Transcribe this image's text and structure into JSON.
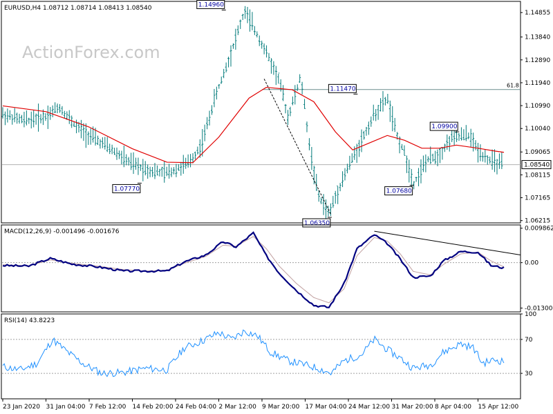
{
  "header": {
    "title": "EURUSD,H4  1.08712 1.08714 1.08413 1.08540"
  },
  "watermark": "ActionForex.com",
  "chart_data": [
    {
      "type": "candlestick",
      "title": "EURUSD,H4  1.08712 1.08714 1.08413 1.08540",
      "y_ticks": [
        "1.14855",
        "1.13840",
        "1.12890",
        "1.11940",
        "1.10990",
        "1.10040",
        "1.09065",
        "1.08115",
        "1.07165",
        "1.06215"
      ],
      "y_tick_values": [
        1.14855,
        1.1384,
        1.1289,
        1.1194,
        1.1099,
        1.1004,
        1.09065,
        1.08115,
        1.07165,
        1.06215
      ],
      "ylim": [
        1.0612,
        1.1532
      ],
      "current_price": {
        "label": "1.08540",
        "value": 1.0854
      },
      "fib_level": {
        "label": "61.8",
        "value": 1.1166
      },
      "annotations": [
        {
          "label": "1.14960",
          "x": 5.1,
          "value": 1.1496
        },
        {
          "label": "1.11470",
          "x": 8.15,
          "value": 1.1147
        },
        {
          "label": "1.07770",
          "x": 3.15,
          "value": 1.0777
        },
        {
          "label": "1.06350",
          "x": 7.55,
          "value": 1.0635
        },
        {
          "label": "1.07680",
          "x": 9.45,
          "value": 1.0768
        },
        {
          "label": "1.09900",
          "x": 10.5,
          "value": 1.099
        }
      ],
      "price_path": [
        [
          0,
          1.1062
        ],
        [
          0.5,
          1.1036
        ],
        [
          1,
          1.1054
        ],
        [
          1.3,
          1.1095
        ],
        [
          1.7,
          1.1012
        ],
        [
          2,
          1.0975
        ],
        [
          2.5,
          1.0918
        ],
        [
          3,
          1.0855
        ],
        [
          3.5,
          1.0825
        ],
        [
          3.8,
          1.0818
        ],
        [
          4.3,
          1.0858
        ],
        [
          4.6,
          1.0935
        ],
        [
          4.9,
          1.1125
        ],
        [
          5.2,
          1.1275
        ],
        [
          5.6,
          1.1492
        ],
        [
          6,
          1.1356
        ],
        [
          6.4,
          1.1205
        ],
        [
          6.6,
          1.1052
        ],
        [
          6.9,
          1.1218
        ],
        [
          7.1,
          1.0932
        ],
        [
          7.3,
          1.0725
        ],
        [
          7.55,
          1.065
        ],
        [
          7.8,
          1.0765
        ],
        [
          8,
          1.0845
        ],
        [
          8.3,
          1.0952
        ],
        [
          8.6,
          1.1062
        ],
        [
          8.9,
          1.113
        ],
        [
          9.1,
          1.0985
        ],
        [
          9.3,
          1.0902
        ],
        [
          9.5,
          1.0772
        ],
        [
          9.8,
          1.0868
        ],
        [
          10.1,
          1.0895
        ],
        [
          10.4,
          1.0968
        ],
        [
          10.8,
          1.0975
        ],
        [
          11.0,
          1.0912
        ],
        [
          11.3,
          1.0868
        ],
        [
          11.6,
          1.0852
        ]
      ],
      "ma_path": [
        [
          0,
          1.1098
        ],
        [
          1,
          1.1074
        ],
        [
          2,
          1.101
        ],
        [
          3,
          1.092
        ],
        [
          3.8,
          1.0864
        ],
        [
          4.4,
          1.0862
        ],
        [
          5,
          1.0968
        ],
        [
          5.7,
          1.113
        ],
        [
          6.1,
          1.1175
        ],
        [
          6.7,
          1.1165
        ],
        [
          7.2,
          1.1115
        ],
        [
          7.7,
          1.099
        ],
        [
          8.1,
          1.0915
        ],
        [
          8.5,
          1.0945
        ],
        [
          8.9,
          1.0975
        ],
        [
          9.3,
          1.0955
        ],
        [
          9.7,
          1.0922
        ],
        [
          10.1,
          1.0922
        ],
        [
          10.5,
          1.0935
        ],
        [
          11.0,
          1.0922
        ],
        [
          11.4,
          1.091
        ],
        [
          11.6,
          1.0905
        ]
      ]
    },
    {
      "type": "line",
      "title": "MACD(12,26,9) -0.001496 -0.001676",
      "y_ticks": [
        "0.009862",
        "0.00",
        "-0.013002"
      ],
      "y_tick_values": [
        0.009862,
        0.0,
        -0.013002
      ],
      "ylim": [
        -0.0141,
        0.0108
      ],
      "series": [
        {
          "name": "MACD",
          "values": [
            [
              0,
              -0.0008
            ],
            [
              0.6,
              -0.001
            ],
            [
              1.1,
              0.0012
            ],
            [
              1.6,
              -0.0004
            ],
            [
              2.2,
              -0.0012
            ],
            [
              2.8,
              -0.0024
            ],
            [
              3.3,
              -0.0024
            ],
            [
              3.8,
              -0.0024
            ],
            [
              4.2,
              0.0002
            ],
            [
              4.7,
              0.0022
            ],
            [
              5.1,
              0.006
            ],
            [
              5.4,
              0.0045
            ],
            [
              5.8,
              0.0085
            ],
            [
              6.1,
              0.002
            ],
            [
              6.4,
              -0.003
            ],
            [
              6.8,
              -0.008
            ],
            [
              7.2,
              -0.0122
            ],
            [
              7.55,
              -0.0128
            ],
            [
              7.9,
              -0.006
            ],
            [
              8.2,
              0.004
            ],
            [
              8.6,
              0.008
            ],
            [
              8.9,
              0.0055
            ],
            [
              9.2,
              0.001
            ],
            [
              9.5,
              -0.0042
            ],
            [
              9.9,
              -0.0038
            ],
            [
              10.2,
              0.0005
            ],
            [
              10.6,
              0.0032
            ],
            [
              11.0,
              0.003
            ],
            [
              11.3,
              -0.0008
            ],
            [
              11.6,
              -0.0015
            ]
          ]
        },
        {
          "name": "Signal",
          "values": [
            [
              0,
              -0.0006
            ],
            [
              0.6,
              -0.0009
            ],
            [
              1.1,
              0.0008
            ],
            [
              1.6,
              -0.0002
            ],
            [
              2.2,
              -0.001
            ],
            [
              2.8,
              -0.002
            ],
            [
              3.3,
              -0.0024
            ],
            [
              3.8,
              -0.0022
            ],
            [
              4.2,
              -0.0002
            ],
            [
              4.7,
              0.0018
            ],
            [
              5.1,
              0.005
            ],
            [
              5.4,
              0.0047
            ],
            [
              5.8,
              0.0075
            ],
            [
              6.1,
              0.004
            ],
            [
              6.4,
              -0.001
            ],
            [
              6.8,
              -0.006
            ],
            [
              7.2,
              -0.01
            ],
            [
              7.55,
              -0.0115
            ],
            [
              7.9,
              -0.0075
            ],
            [
              8.2,
              0.002
            ],
            [
              8.6,
              0.0072
            ],
            [
              8.9,
              0.0062
            ],
            [
              9.2,
              0.0025
            ],
            [
              9.5,
              -0.0025
            ],
            [
              9.9,
              -0.0035
            ],
            [
              10.2,
              -0.0005
            ],
            [
              10.6,
              0.0025
            ],
            [
              11.0,
              0.003
            ],
            [
              11.3,
              0.0005
            ],
            [
              11.6,
              -0.0012
            ]
          ]
        }
      ],
      "trendline": [
        [
          8.6,
          0.009
        ],
        [
          11.6,
          0.0022
        ]
      ]
    },
    {
      "type": "line",
      "title": "RSI(14) 43.8223",
      "y_ticks": [
        "100",
        "70",
        "30"
      ],
      "y_tick_values": [
        100,
        70,
        30
      ],
      "ylim": [
        0,
        100
      ],
      "series": [
        {
          "name": "RSI",
          "values": [
            [
              0,
              38
            ],
            [
              0.4,
              34
            ],
            [
              0.8,
              42
            ],
            [
              1.15,
              70
            ],
            [
              1.5,
              55
            ],
            [
              1.9,
              40
            ],
            [
              2.3,
              30
            ],
            [
              2.8,
              31
            ],
            [
              3.3,
              36
            ],
            [
              3.8,
              34
            ],
            [
              4.2,
              60
            ],
            [
              4.6,
              68
            ],
            [
              5.0,
              78
            ],
            [
              5.3,
              70
            ],
            [
              5.6,
              80
            ],
            [
              5.9,
              74
            ],
            [
              6.2,
              55
            ],
            [
              6.6,
              45
            ],
            [
              7.0,
              40
            ],
            [
              7.3,
              36
            ],
            [
              7.6,
              30
            ],
            [
              7.9,
              45
            ],
            [
              8.3,
              52
            ],
            [
              8.6,
              70
            ],
            [
              8.9,
              58
            ],
            [
              9.2,
              48
            ],
            [
              9.5,
              36
            ],
            [
              9.9,
              40
            ],
            [
              10.2,
              55
            ],
            [
              10.6,
              65
            ],
            [
              10.9,
              60
            ],
            [
              11.1,
              42
            ],
            [
              11.4,
              46
            ],
            [
              11.6,
              44
            ]
          ]
        }
      ]
    }
  ],
  "x_axis": {
    "labels": [
      "23 Jan 2020",
      "31 Jan 04:00",
      "7 Feb 12:00",
      "14 Feb 20:00",
      "24 Feb 04:00",
      "2 Mar 12:00",
      "9 Mar 20:00",
      "17 Mar 04:00",
      "24 Mar 12:00",
      "31 Mar 20:00",
      "8 Apr 04:00",
      "15 Apr 12:00"
    ],
    "label_x": [
      0,
      1,
      2,
      3,
      4,
      5,
      6,
      7,
      8,
      9,
      10,
      11
    ]
  },
  "colors": {
    "price": "#007a7a",
    "ma": "#e00000",
    "macd": "#000080",
    "signal": "#c0a0a0",
    "rsi": "#1e90ff",
    "grid": "#c0c0c0",
    "annotation": "#0000ff"
  }
}
